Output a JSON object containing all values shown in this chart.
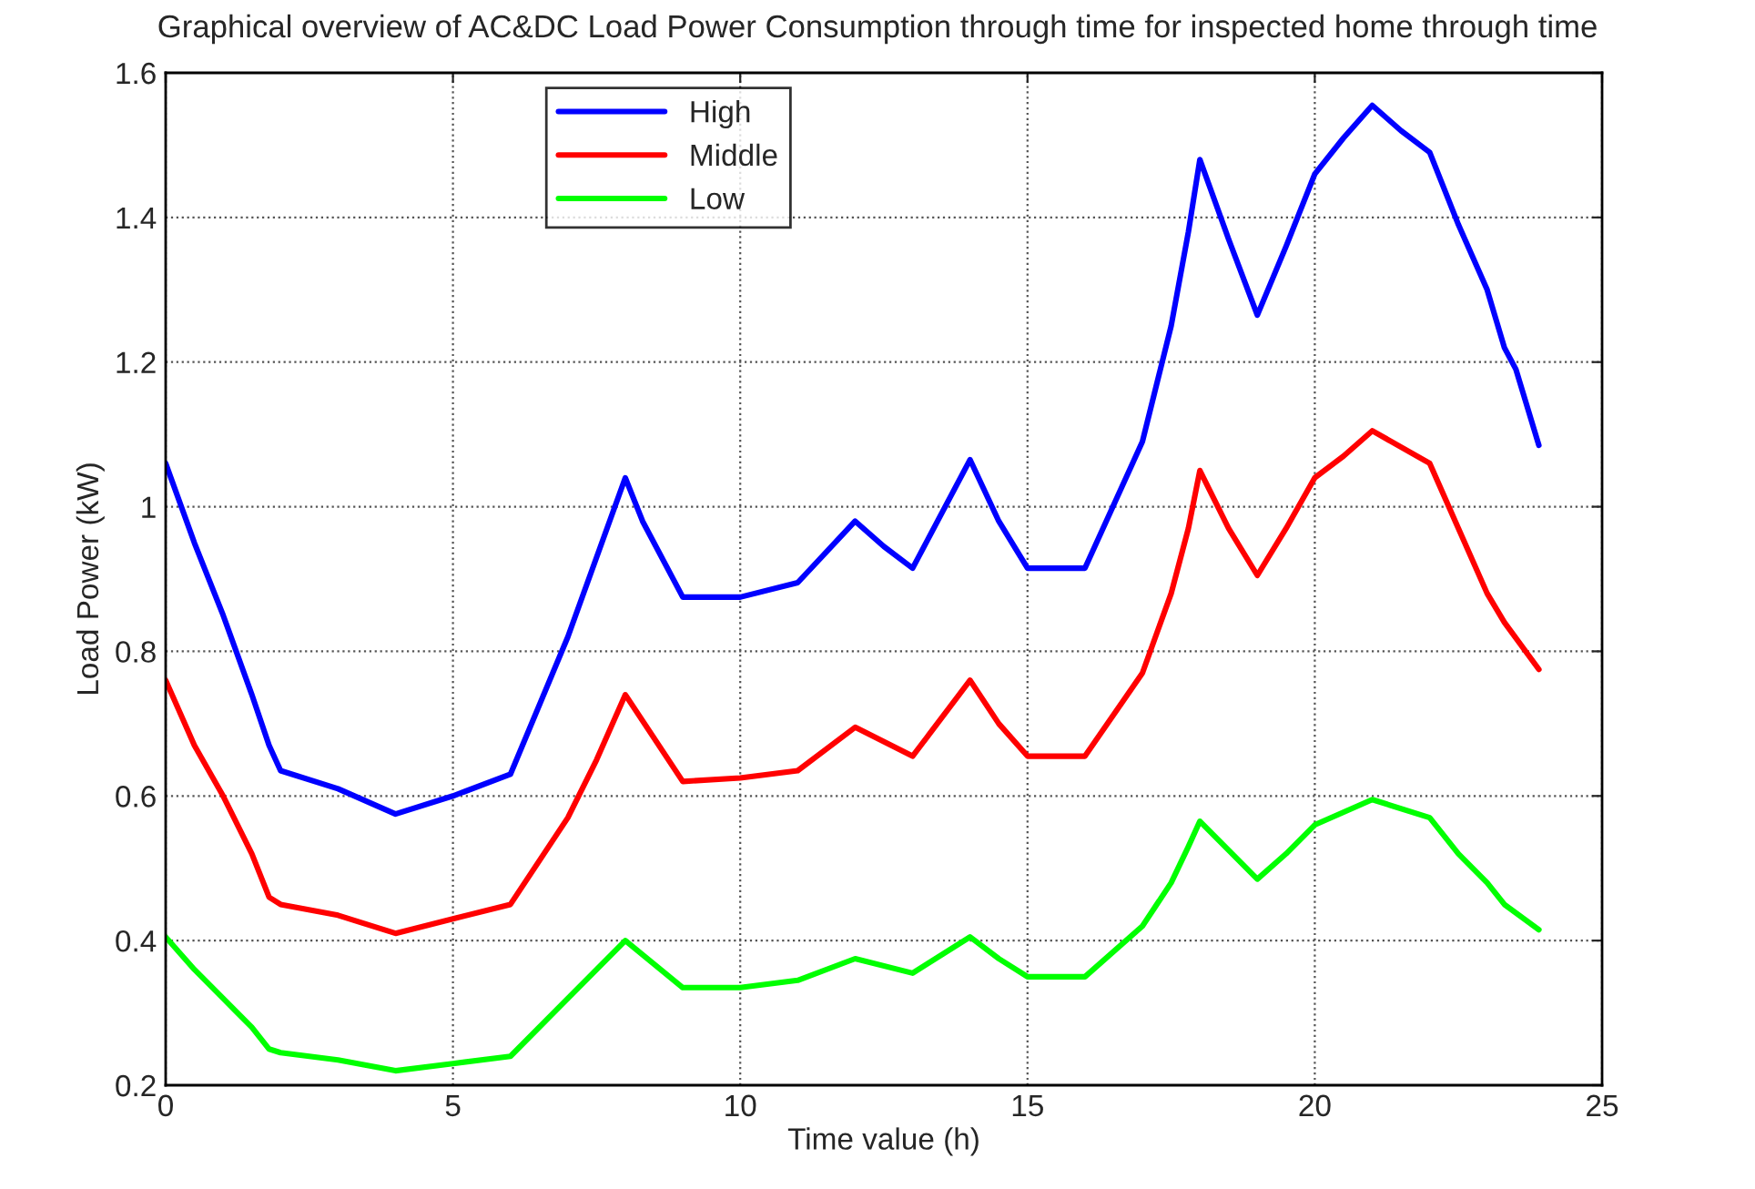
{
  "chart_data": {
    "type": "line",
    "title": "Graphical overview of AC&DC Load Power Consumption through time for inspected home through time",
    "xlabel": "Time value (h)",
    "ylabel": "Load Power (kW)",
    "series": [
      {
        "name": "High",
        "color": "#0000ff",
        "x": [
          0,
          0.5,
          1,
          1.5,
          1.8,
          2,
          3,
          4,
          5,
          6,
          7,
          8,
          8.3,
          9,
          10,
          11,
          12,
          12.5,
          13,
          14,
          14.5,
          15,
          16,
          17,
          17.5,
          17.8,
          18,
          18.5,
          19,
          19.5,
          20,
          20.5,
          21,
          21.5,
          22,
          22.5,
          23,
          23.3,
          23.5,
          23.9
        ],
        "values": [
          1.06,
          0.95,
          0.85,
          0.74,
          0.67,
          0.635,
          0.61,
          0.575,
          0.6,
          0.63,
          0.82,
          1.04,
          0.98,
          0.875,
          0.875,
          0.895,
          0.98,
          0.945,
          0.915,
          1.065,
          0.98,
          0.915,
          0.915,
          1.09,
          1.25,
          1.38,
          1.48,
          1.37,
          1.265,
          1.36,
          1.46,
          1.51,
          1.555,
          1.52,
          1.49,
          1.39,
          1.3,
          1.22,
          1.19,
          1.085
        ]
      },
      {
        "name": "Middle",
        "color": "#ff0000",
        "x": [
          0,
          0.5,
          1,
          1.5,
          1.8,
          2,
          3,
          4,
          5,
          6,
          7,
          7.5,
          8,
          9,
          10,
          11,
          12,
          13,
          14,
          14.5,
          15,
          16,
          17,
          17.5,
          17.8,
          18,
          18.5,
          19,
          19.5,
          20,
          20.5,
          21,
          22,
          22.5,
          23,
          23.3,
          23.9
        ],
        "values": [
          0.76,
          0.67,
          0.6,
          0.52,
          0.46,
          0.45,
          0.435,
          0.41,
          0.43,
          0.45,
          0.57,
          0.65,
          0.74,
          0.62,
          0.625,
          0.635,
          0.695,
          0.655,
          0.76,
          0.7,
          0.655,
          0.655,
          0.77,
          0.88,
          0.97,
          1.05,
          0.97,
          0.905,
          0.97,
          1.04,
          1.07,
          1.105,
          1.06,
          0.97,
          0.88,
          0.84,
          0.775
        ]
      },
      {
        "name": "Low",
        "color": "#00ff00",
        "x": [
          0,
          0.5,
          1,
          1.5,
          1.8,
          2,
          3,
          4,
          5,
          6,
          7,
          7.5,
          8,
          9,
          10,
          11,
          12,
          13,
          14,
          14.5,
          15,
          16,
          17,
          17.5,
          17.8,
          18,
          18.5,
          19,
          19.5,
          20,
          21,
          22,
          22.5,
          23,
          23.3,
          23.9
        ],
        "values": [
          0.405,
          0.36,
          0.32,
          0.28,
          0.25,
          0.245,
          0.235,
          0.22,
          0.23,
          0.24,
          0.32,
          0.36,
          0.4,
          0.335,
          0.335,
          0.345,
          0.375,
          0.355,
          0.405,
          0.375,
          0.35,
          0.35,
          0.42,
          0.48,
          0.53,
          0.565,
          0.525,
          0.485,
          0.52,
          0.56,
          0.595,
          0.57,
          0.52,
          0.48,
          0.45,
          0.415
        ]
      }
    ],
    "xlim": [
      0,
      25
    ],
    "xticks": [
      0,
      5,
      10,
      15,
      20,
      25
    ],
    "ylim": [
      0.2,
      1.6
    ],
    "yticks": [
      0.2,
      0.4,
      0.6,
      0.8,
      1,
      1.2,
      1.4,
      1.6
    ],
    "grid": true,
    "legend": "top",
    "line_style": "solid",
    "marker": "none"
  }
}
